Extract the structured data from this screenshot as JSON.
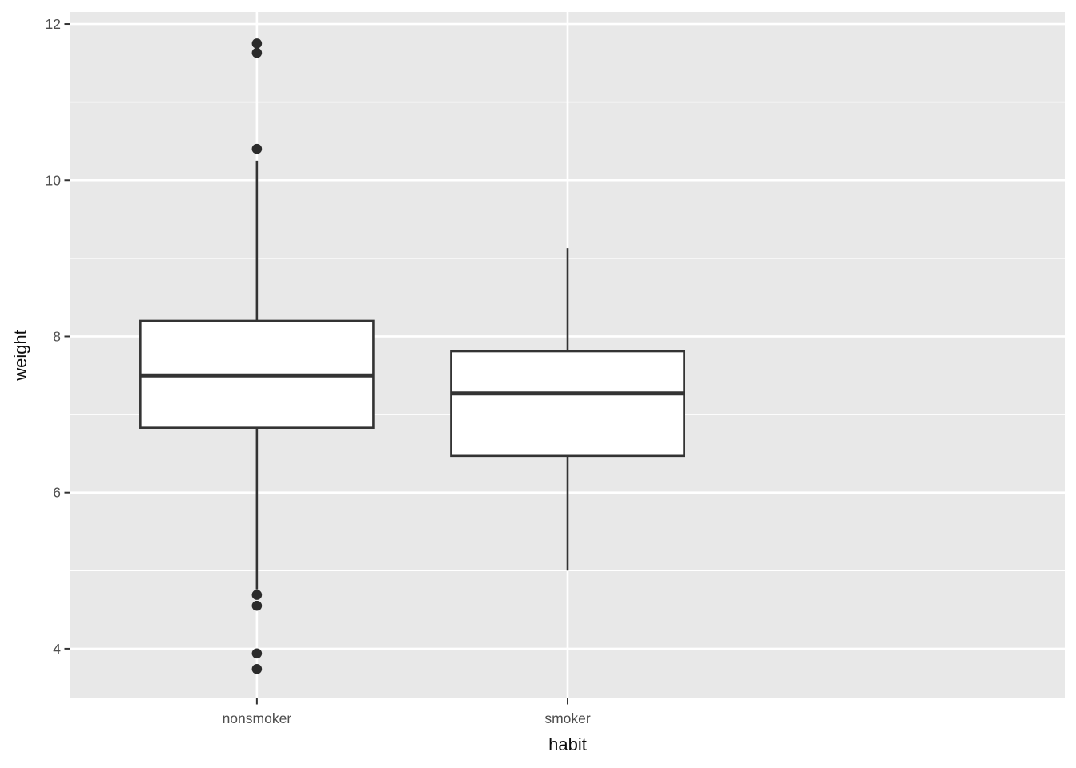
{
  "chart_data": {
    "type": "boxplot",
    "title": "",
    "xlabel": "habit",
    "ylabel": "weight",
    "categories": [
      "nonsmoker",
      "smoker"
    ],
    "y_axis": {
      "ticks": [
        4,
        6,
        8,
        10,
        12
      ],
      "minor_ticks": [
        5,
        7,
        9,
        11
      ],
      "range_top": 12.154,
      "range_bottom": 3.364
    },
    "legend": "none",
    "grid": "on",
    "series": [
      {
        "name": "nonsmoker",
        "whisker_low": 4.76,
        "q1": 6.83,
        "median": 7.5,
        "q3": 8.2,
        "whisker_high": 10.25,
        "outliers": [
          11.75,
          11.63,
          10.4,
          4.69,
          4.55,
          3.94,
          3.74
        ]
      },
      {
        "name": "smoker",
        "whisker_low": 5.0,
        "q1": 6.47,
        "median": 7.27,
        "q3": 7.81,
        "whisker_high": 9.13,
        "outliers": []
      }
    ],
    "style": {
      "panel_bg": "#E8E8E8",
      "grid_major_color": "#FFFFFF",
      "grid_minor_color": "#FFFFFF",
      "box_fill": "#FFFFFF",
      "box_stroke": "#333333",
      "outlier_color": "#2B2B2B",
      "tick_mark_color": "#333333",
      "tick_label_color": "#4D4D4D",
      "axis_title_color": "#0D0D0D"
    }
  }
}
